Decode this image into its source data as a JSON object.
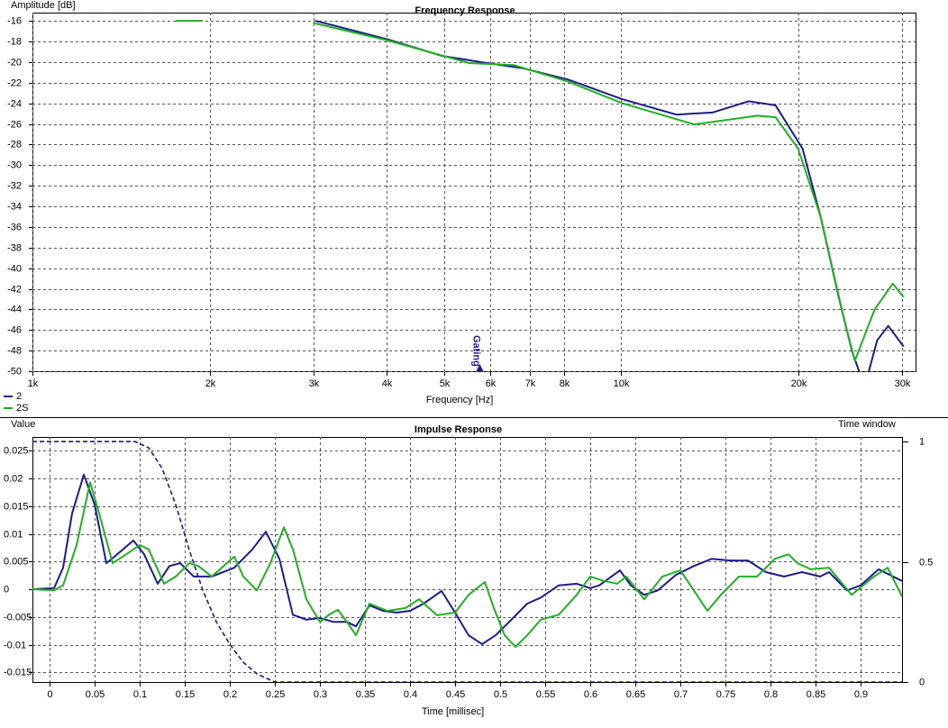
{
  "chart_data": [
    {
      "type": "line",
      "title": "Frequency Response",
      "ylabel": "Amplitude [dB]",
      "xlabel": "Frequency [Hz]",
      "xscale": "log",
      "xlim": [
        1000,
        31600
      ],
      "ylim": [
        -50,
        -15.2
      ],
      "xticks": [
        {
          "value": 1000,
          "label": "1k"
        },
        {
          "value": 2000,
          "label": "2k"
        },
        {
          "value": 3000,
          "label": "3k"
        },
        {
          "value": 4000,
          "label": "4k"
        },
        {
          "value": 5000,
          "label": "5k"
        },
        {
          "value": 6000,
          "label": "6k"
        },
        {
          "value": 7000,
          "label": "7k"
        },
        {
          "value": 8000,
          "label": "8k"
        },
        {
          "value": 10000,
          "label": "10k"
        },
        {
          "value": 20000,
          "label": "20k"
        },
        {
          "value": 30000,
          "label": "30k"
        }
      ],
      "yticks": [
        -16,
        -18,
        -20,
        -22,
        -24,
        -26,
        -28,
        -30,
        -32,
        -34,
        -36,
        -38,
        -40,
        -42,
        -44,
        -46,
        -48,
        -50
      ],
      "grid": true,
      "legend": "below-left",
      "annotation": {
        "text": "Gating",
        "x": 5750
      },
      "series": [
        {
          "name": "2",
          "color": "#1c1c8a",
          "x": [
            3026,
            4012,
            4958,
            5912,
            6809,
            8122,
            10035,
            12404,
            14278,
            16440,
            18277,
            20317,
            21800,
            23397,
            24660,
            25900,
            27200,
            28400,
            30150
          ],
          "values": [
            -16,
            -17.8,
            -19.4,
            -20.1,
            -20.6,
            -21.7,
            -23.6,
            -25.1,
            -24.9,
            -23.8,
            -24.2,
            -28.4,
            -35,
            -42.8,
            -48.1,
            -51.5,
            -47,
            -45.6,
            -47.6
          ]
        },
        {
          "name": "2S",
          "color": "#22b022",
          "x": [
            1752,
            1947,
            2400,
            2994,
            4012,
            5511,
            6573,
            8122,
            10035,
            13306,
            17026,
            18277,
            19963,
            21800,
            23810,
            24920,
            26930,
            28900,
            30150
          ],
          "values": [
            -16,
            -16,
            null,
            -16.2,
            -17.9,
            -20.1,
            -20.3,
            -21.9,
            -24.0,
            -26.05,
            -25.2,
            -25.35,
            -28.4,
            -35,
            -44.6,
            -49,
            -44,
            -41.5,
            -42.8
          ]
        }
      ]
    },
    {
      "type": "line",
      "title": "Impulse Response",
      "ylabel": "Value",
      "xlabel": "Time [millisec]",
      "y2label": "Time window",
      "xlim": [
        -0.019,
        0.946
      ],
      "ylim": [
        -0.01675,
        0.0275
      ],
      "y2lim": [
        0,
        1.019
      ],
      "xticks": [
        0,
        0.05,
        0.1,
        0.15,
        0.2,
        0.25,
        0.3,
        0.35,
        0.4,
        0.45,
        0.5,
        0.55,
        0.6,
        0.65,
        0.7,
        0.75,
        0.8,
        0.85,
        0.9
      ],
      "yticks": [
        0.025,
        0.02,
        0.015,
        0.01,
        0.005,
        0,
        -0.005,
        -0.01,
        -0.015
      ],
      "y2ticks": [
        1,
        0.5,
        0
      ],
      "grid": true,
      "series": [
        {
          "color": "#1c1c8a",
          "x": [
            -0.019,
            0.005,
            0.015,
            0.025,
            0.038,
            0.05,
            0.063,
            0.075,
            0.093,
            0.105,
            0.12,
            0.133,
            0.145,
            0.16,
            0.18,
            0.205,
            0.225,
            0.24,
            0.255,
            0.27,
            0.285,
            0.3,
            0.315,
            0.33,
            0.34,
            0.355,
            0.37,
            0.385,
            0.4,
            0.415,
            0.435,
            0.45,
            0.465,
            0.48,
            0.495,
            0.51,
            0.53,
            0.545,
            0.565,
            0.585,
            0.6,
            0.61,
            0.633,
            0.645,
            0.66,
            0.675,
            0.695,
            0.715,
            0.735,
            0.755,
            0.775,
            0.795,
            0.815,
            0.835,
            0.855,
            0.865,
            0.885,
            0.9,
            0.92,
            0.946
          ],
          "values": [
            0,
            0.0002,
            0.0039,
            0.0137,
            0.0207,
            0.0153,
            0.0047,
            0.0063,
            0.0088,
            0.0063,
            0.001,
            0.0042,
            0.0047,
            0.0023,
            0.0023,
            0.0039,
            0.0072,
            0.0104,
            0.0055,
            -0.0046,
            -0.0055,
            -0.0052,
            -0.0059,
            -0.0059,
            -0.0067,
            -0.0029,
            -0.0039,
            -0.0042,
            -0.0039,
            -0.0026,
            -0.0003,
            -0.0042,
            -0.0083,
            -0.0099,
            -0.0083,
            -0.0059,
            -0.0026,
            -0.0015,
            0.0007,
            0.001,
            0.0002,
            0.0007,
            0.0034,
            0.0007,
            -0.001,
            -0.0002,
            0.0026,
            0.0042,
            0.0055,
            0.0052,
            0.0052,
            0.0031,
            0.0023,
            0.0031,
            0.0023,
            0.0031,
            -0.0002,
            0.0007,
            0.0036,
            0.0015
          ]
        },
        {
          "color": "#22b022",
          "x": [
            -0.019,
            0.005,
            0.015,
            0.03,
            0.045,
            0.055,
            0.07,
            0.085,
            0.1,
            0.11,
            0.127,
            0.14,
            0.155,
            0.165,
            0.18,
            0.205,
            0.215,
            0.23,
            0.245,
            0.26,
            0.27,
            0.285,
            0.3,
            0.31,
            0.32,
            0.33,
            0.34,
            0.355,
            0.375,
            0.395,
            0.41,
            0.43,
            0.45,
            0.465,
            0.483,
            0.493,
            0.505,
            0.517,
            0.53,
            0.545,
            0.565,
            0.585,
            0.6,
            0.615,
            0.63,
            0.64,
            0.66,
            0.68,
            0.7,
            0.715,
            0.73,
            0.745,
            0.765,
            0.785,
            0.805,
            0.82,
            0.83,
            0.845,
            0.865,
            0.89,
            0.915,
            0.93,
            0.946
          ],
          "values": [
            0,
            -0.0002,
            0.0007,
            0.008,
            0.0193,
            0.0137,
            0.0047,
            0.0063,
            0.008,
            0.0072,
            0.001,
            0.0023,
            0.0047,
            0.0042,
            0.0023,
            0.0059,
            0.0023,
            -0.0002,
            0.0047,
            0.0112,
            0.0072,
            -0.0018,
            -0.0059,
            -0.0046,
            -0.0037,
            -0.0059,
            -0.0083,
            -0.0026,
            -0.0039,
            -0.0034,
            -0.0018,
            -0.0047,
            -0.0042,
            -0.001,
            0.0013,
            -0.0034,
            -0.0083,
            -0.0104,
            -0.0083,
            -0.0055,
            -0.0046,
            -0.001,
            0.0023,
            0.0015,
            0.001,
            0.0023,
            -0.0018,
            0.0023,
            0.0034,
            -0.0002,
            -0.0039,
            -0.001,
            0.0023,
            0.0023,
            0.0055,
            0.0063,
            0.0047,
            0.0036,
            0.0039,
            -0.001,
            0.0023,
            0.0039,
            -0.0013
          ]
        },
        {
          "color": "#1c1c8a",
          "dash": "dashed",
          "axis": "y2",
          "x": [
            -0.019,
            0.095,
            0.11,
            0.125,
            0.14,
            0.155,
            0.17,
            0.185,
            0.2,
            0.215,
            0.23,
            0.25,
            0.946
          ],
          "values": [
            1,
            1,
            0.974,
            0.888,
            0.738,
            0.55,
            0.382,
            0.251,
            0.157,
            0.082,
            0.034,
            0,
            0
          ]
        }
      ]
    }
  ]
}
